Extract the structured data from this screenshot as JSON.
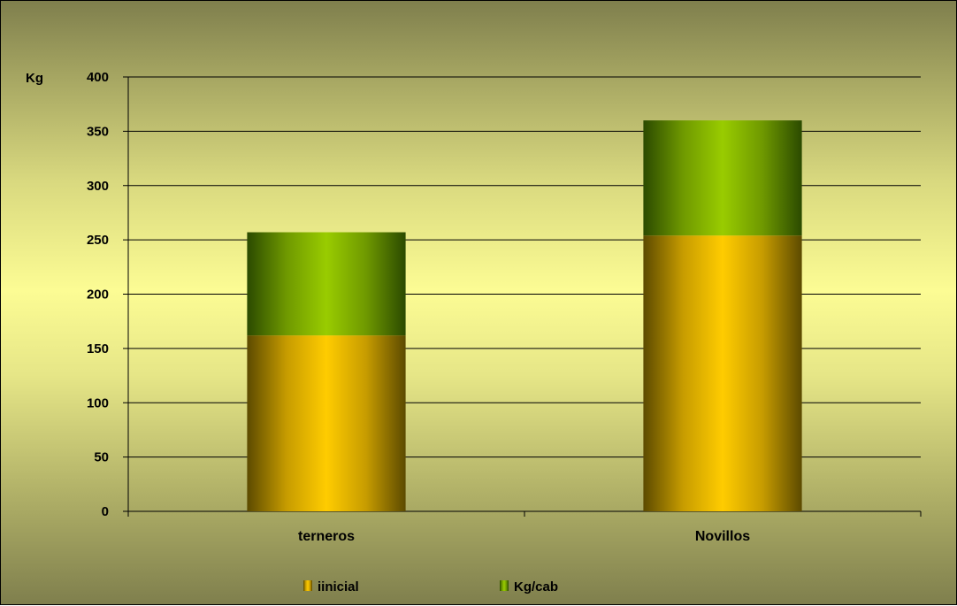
{
  "chart_data": {
    "type": "bar",
    "stacked": true,
    "ylabel": "Kg",
    "ylim": [
      0,
      400
    ],
    "yticks": [
      0,
      50,
      100,
      150,
      200,
      250,
      300,
      350,
      400
    ],
    "grid": true,
    "legend_position": "bottom",
    "categories": [
      "terneros",
      "Novillos"
    ],
    "series": [
      {
        "name": "iinicial",
        "values": [
          162,
          254
        ],
        "color": "#ffcc00"
      },
      {
        "name": "Kg/cab",
        "values": [
          95,
          106
        ],
        "color": "#99cc00"
      }
    ]
  }
}
